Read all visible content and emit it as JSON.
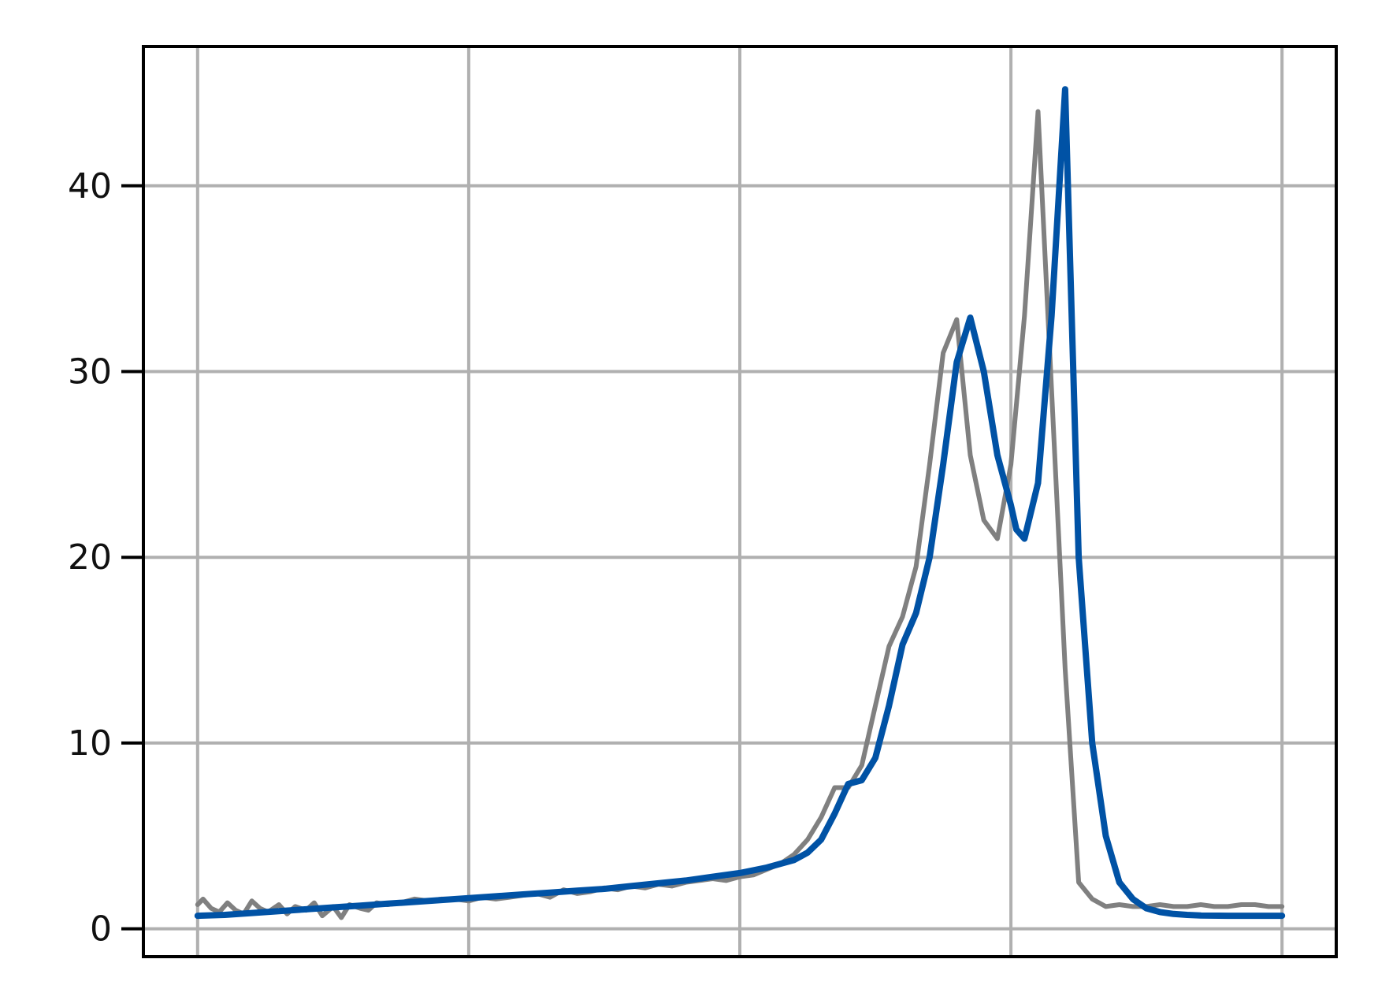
{
  "chart_data": {
    "type": "line",
    "title": "",
    "xlabel": "",
    "ylabel": "",
    "xlim": [
      -0.2,
      4.2
    ],
    "ylim": [
      -1.5,
      47.5
    ],
    "x_ticks": [
      0,
      1,
      2,
      3,
      4
    ],
    "y_ticks": [
      0,
      10,
      20,
      30,
      40
    ],
    "y_tick_labels": [
      "0",
      "10",
      "20",
      "30",
      "40"
    ],
    "x_tick_labels_visible": false,
    "grid": true,
    "colors": {
      "raw": "#808080",
      "fit": "#0052a5",
      "grid": "#b0b0b0",
      "axes": "#000000"
    },
    "series": [
      {
        "role": "measured (noisy)",
        "x": [
          0.0,
          0.02,
          0.05,
          0.08,
          0.11,
          0.14,
          0.17,
          0.2,
          0.23,
          0.26,
          0.3,
          0.33,
          0.36,
          0.4,
          0.43,
          0.46,
          0.5,
          0.53,
          0.56,
          0.6,
          0.63,
          0.66,
          0.7,
          0.75,
          0.8,
          0.85,
          0.9,
          0.95,
          1.0,
          1.05,
          1.1,
          1.15,
          1.2,
          1.25,
          1.3,
          1.35,
          1.4,
          1.45,
          1.5,
          1.55,
          1.6,
          1.65,
          1.7,
          1.75,
          1.8,
          1.85,
          1.9,
          1.95,
          2.0,
          2.05,
          2.1,
          2.15,
          2.2,
          2.25,
          2.3,
          2.35,
          2.4,
          2.45,
          2.5,
          2.55,
          2.6,
          2.65,
          2.7,
          2.75,
          2.8,
          2.85,
          2.9,
          2.95,
          3.0,
          3.05,
          3.1,
          3.15,
          3.2,
          3.25,
          3.3,
          3.35,
          3.4,
          3.45,
          3.5,
          3.55,
          3.6,
          3.65,
          3.7,
          3.75,
          3.8,
          3.85,
          3.9,
          3.95,
          4.0
        ],
        "y": [
          1.3,
          1.6,
          1.1,
          0.9,
          1.4,
          1.0,
          0.8,
          1.5,
          1.1,
          0.9,
          1.3,
          0.8,
          1.2,
          1.0,
          1.4,
          0.7,
          1.2,
          0.6,
          1.3,
          1.1,
          1.0,
          1.4,
          1.3,
          1.4,
          1.6,
          1.5,
          1.6,
          1.6,
          1.5,
          1.7,
          1.6,
          1.7,
          1.8,
          1.9,
          1.7,
          2.1,
          1.9,
          2.0,
          2.2,
          2.1,
          2.3,
          2.2,
          2.4,
          2.3,
          2.5,
          2.6,
          2.7,
          2.6,
          2.8,
          2.9,
          3.2,
          3.5,
          4.0,
          4.8,
          6.0,
          7.6,
          7.6,
          8.8,
          12.0,
          15.2,
          16.8,
          19.5,
          25.0,
          31.0,
          32.8,
          25.5,
          22.0,
          21.0,
          25.0,
          33.0,
          44.0,
          29.0,
          14.0,
          2.5,
          1.6,
          1.2,
          1.3,
          1.2,
          1.2,
          1.3,
          1.2,
          1.2,
          1.3,
          1.2,
          1.2,
          1.3,
          1.3,
          1.2,
          1.2
        ]
      },
      {
        "role": "smoothed fit",
        "x": [
          0.0,
          0.1,
          0.2,
          0.3,
          0.4,
          0.5,
          0.6,
          0.7,
          0.8,
          0.9,
          1.0,
          1.1,
          1.2,
          1.3,
          1.4,
          1.5,
          1.6,
          1.7,
          1.8,
          1.9,
          2.0,
          2.1,
          2.2,
          2.25,
          2.3,
          2.35,
          2.4,
          2.45,
          2.5,
          2.55,
          2.6,
          2.65,
          2.7,
          2.75,
          2.8,
          2.85,
          2.9,
          2.95,
          3.0,
          3.02,
          3.05,
          3.1,
          3.15,
          3.2,
          3.25,
          3.3,
          3.35,
          3.4,
          3.45,
          3.5,
          3.55,
          3.6,
          3.65,
          3.7,
          3.8,
          3.9,
          4.0
        ],
        "y": [
          0.7,
          0.75,
          0.85,
          0.95,
          1.05,
          1.15,
          1.25,
          1.35,
          1.45,
          1.55,
          1.65,
          1.75,
          1.85,
          1.95,
          2.05,
          2.15,
          2.3,
          2.45,
          2.6,
          2.8,
          3.0,
          3.3,
          3.7,
          4.1,
          4.8,
          6.2,
          7.8,
          8.0,
          9.2,
          12.0,
          15.3,
          17.0,
          20.0,
          25.0,
          30.5,
          32.9,
          30.0,
          25.5,
          22.8,
          21.5,
          21.0,
          24.0,
          33.0,
          45.2,
          20.0,
          10.0,
          5.0,
          2.5,
          1.6,
          1.1,
          0.9,
          0.8,
          0.75,
          0.72,
          0.7,
          0.7,
          0.7
        ]
      }
    ]
  }
}
